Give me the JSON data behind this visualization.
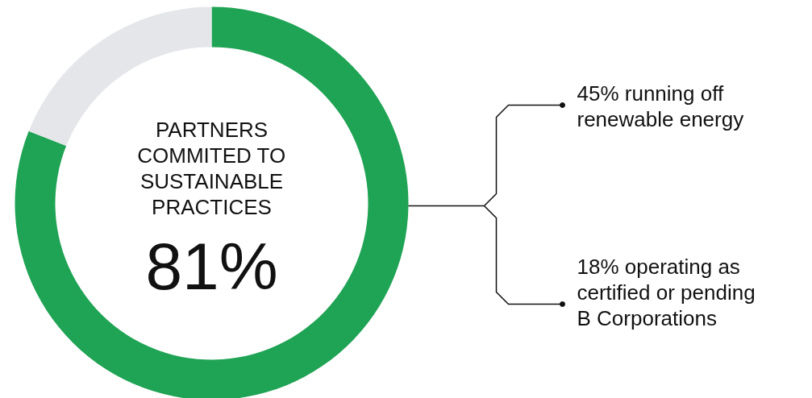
{
  "chart_data": {
    "type": "donut",
    "title": "PARTNERS COMMITED TO SUSTAINABLE PRACTICES",
    "categories": [
      null,
      null
    ],
    "values": [
      81,
      19
    ],
    "colors": [
      "#1fa354",
      "#e4e6ea"
    ],
    "value_labels": [
      "81%",
      null
    ],
    "annotations": [
      "45% running off renewable energy",
      "18% operating as certified or pending B Corporations"
    ]
  }
}
